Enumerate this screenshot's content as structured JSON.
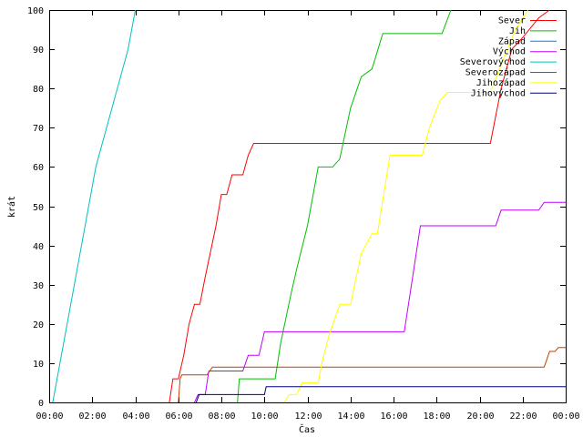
{
  "chart_data": {
    "type": "line",
    "title": "",
    "xlabel": "Čas",
    "ylabel": "krát",
    "xlim": [
      "00:00",
      "24:00"
    ],
    "ylim": [
      0,
      100
    ],
    "x_ticks": [
      "00:00",
      "02:00",
      "04:00",
      "06:00",
      "08:00",
      "10:00",
      "12:00",
      "14:00",
      "16:00",
      "18:00",
      "20:00",
      "22:00",
      "00:00"
    ],
    "y_ticks": [
      0,
      10,
      20,
      30,
      40,
      50,
      60,
      70,
      80,
      90,
      100
    ],
    "legend_position": "top-right",
    "grid": false,
    "series": [
      {
        "name": "Sever",
        "color": "#ff0000",
        "points": [
          [
            "05:35",
            0
          ],
          [
            "05:45",
            6
          ],
          [
            "06:00",
            6
          ],
          [
            "06:15",
            12
          ],
          [
            "06:30",
            20
          ],
          [
            "06:45",
            25
          ],
          [
            "07:00",
            25
          ],
          [
            "07:15",
            32
          ],
          [
            "07:45",
            45
          ],
          [
            "08:00",
            53
          ],
          [
            "08:15",
            53
          ],
          [
            "08:30",
            58
          ],
          [
            "09:00",
            58
          ],
          [
            "09:15",
            63
          ],
          [
            "09:30",
            66
          ],
          [
            "20:30",
            66
          ],
          [
            "21:00",
            80
          ],
          [
            "21:30",
            90
          ],
          [
            "22:00",
            93
          ],
          [
            "22:45",
            98
          ],
          [
            "23:15",
            100
          ]
        ]
      },
      {
        "name": "Jih",
        "color": "#00c000",
        "points": [
          [
            "08:45",
            0
          ],
          [
            "08:50",
            6
          ],
          [
            "10:30",
            6
          ],
          [
            "10:45",
            15
          ],
          [
            "11:15",
            28
          ],
          [
            "11:30",
            34
          ],
          [
            "12:00",
            45
          ],
          [
            "12:30",
            60
          ],
          [
            "13:10",
            60
          ],
          [
            "13:30",
            62
          ],
          [
            "14:00",
            75
          ],
          [
            "14:30",
            83
          ],
          [
            "15:00",
            85
          ],
          [
            "15:30",
            94
          ],
          [
            "18:15",
            94
          ],
          [
            "18:40",
            100
          ]
        ]
      },
      {
        "name": "Západ",
        "color": "#0080ff",
        "points": []
      },
      {
        "name": "Východ",
        "color": "#c000ff",
        "points": [
          [
            "06:45",
            0
          ],
          [
            "06:55",
            2
          ],
          [
            "07:15",
            2
          ],
          [
            "07:25",
            8
          ],
          [
            "09:00",
            8
          ],
          [
            "09:15",
            12
          ],
          [
            "09:45",
            12
          ],
          [
            "10:00",
            18
          ],
          [
            "16:30",
            18
          ],
          [
            "16:50",
            30
          ],
          [
            "17:15",
            45
          ],
          [
            "20:45",
            45
          ],
          [
            "21:00",
            49
          ],
          [
            "22:45",
            49
          ],
          [
            "23:00",
            51
          ],
          [
            "24:00",
            51
          ]
        ]
      },
      {
        "name": "Severovýchod",
        "color": "#00c0c0",
        "points": [
          [
            "00:10",
            0
          ],
          [
            "01:10",
            30
          ],
          [
            "02:10",
            60
          ],
          [
            "03:40",
            90
          ],
          [
            "04:00",
            100
          ]
        ]
      },
      {
        "name": "Severozápad",
        "color": "#c04000",
        "points": [
          [
            "06:00",
            0
          ],
          [
            "06:05",
            6
          ],
          [
            "06:10",
            7
          ],
          [
            "07:20",
            7
          ],
          [
            "07:35",
            9
          ],
          [
            "23:00",
            9
          ],
          [
            "23:15",
            13
          ],
          [
            "23:30",
            13
          ],
          [
            "23:40",
            14
          ],
          [
            "24:00",
            14
          ]
        ]
      },
      {
        "name": "Jihozápad",
        "color": "#ffff00",
        "points": [
          [
            "10:55",
            0
          ],
          [
            "11:10",
            2
          ],
          [
            "11:30",
            2
          ],
          [
            "11:45",
            5
          ],
          [
            "12:30",
            5
          ],
          [
            "12:40",
            10
          ],
          [
            "13:00",
            17
          ],
          [
            "13:30",
            25
          ],
          [
            "14:00",
            25
          ],
          [
            "14:30",
            38
          ],
          [
            "15:00",
            43
          ],
          [
            "15:15",
            43
          ],
          [
            "15:50",
            63
          ],
          [
            "17:20",
            63
          ],
          [
            "17:40",
            70
          ],
          [
            "18:10",
            77
          ],
          [
            "18:30",
            79
          ],
          [
            "20:30",
            79
          ],
          [
            "21:00",
            86
          ],
          [
            "21:40",
            95
          ],
          [
            "22:15",
            100
          ]
        ]
      },
      {
        "name": "Jihovýchod",
        "color": "#000080",
        "points": [
          [
            "06:50",
            0
          ],
          [
            "06:58",
            2
          ],
          [
            "10:00",
            2
          ],
          [
            "10:05",
            4
          ],
          [
            "24:00",
            4
          ]
        ]
      }
    ]
  }
}
